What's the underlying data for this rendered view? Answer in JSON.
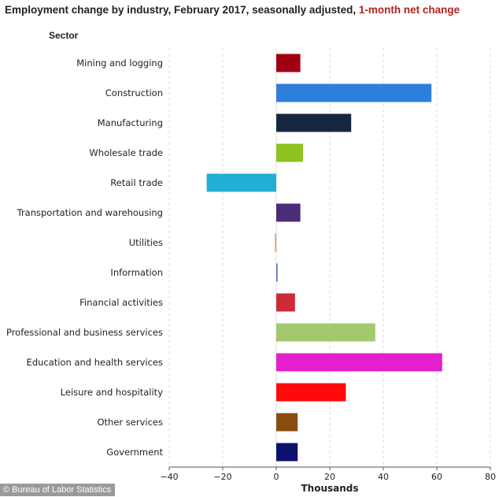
{
  "header": {
    "title_main": "Employment change by industry, February 2017, seasonally adjusted,",
    "title_highlight": "1-month net change"
  },
  "credit": "© Bureau of Labor Statistics",
  "chart_data": {
    "type": "bar",
    "orientation": "horizontal",
    "category_axis_title": "Sector",
    "xlabel": "Thousands",
    "xlim": [
      -40,
      80
    ],
    "xticks": [
      -40,
      -20,
      0,
      20,
      40,
      60,
      80
    ],
    "grid": "vertical-dashed",
    "categories": [
      "Mining and logging",
      "Construction",
      "Manufacturing",
      "Wholesale trade",
      "Retail trade",
      "Transportation and warehousing",
      "Utilities",
      "Information",
      "Financial activities",
      "Professional and business services",
      "Education and health services",
      "Leisure and hospitality",
      "Other services",
      "Government"
    ],
    "values": [
      9,
      58,
      28,
      10,
      -26,
      9,
      -0.5,
      0.5,
      7,
      37,
      62,
      26,
      8,
      8
    ],
    "colors": [
      "#a00012",
      "#2e7fdb",
      "#172640",
      "#8ec21f",
      "#23aed6",
      "#4b2c78",
      "#e8956a",
      "#5577c8",
      "#cc2a36",
      "#a4c86e",
      "#e41fcc",
      "#ff0a0a",
      "#8a4d0f",
      "#0c1170"
    ]
  }
}
